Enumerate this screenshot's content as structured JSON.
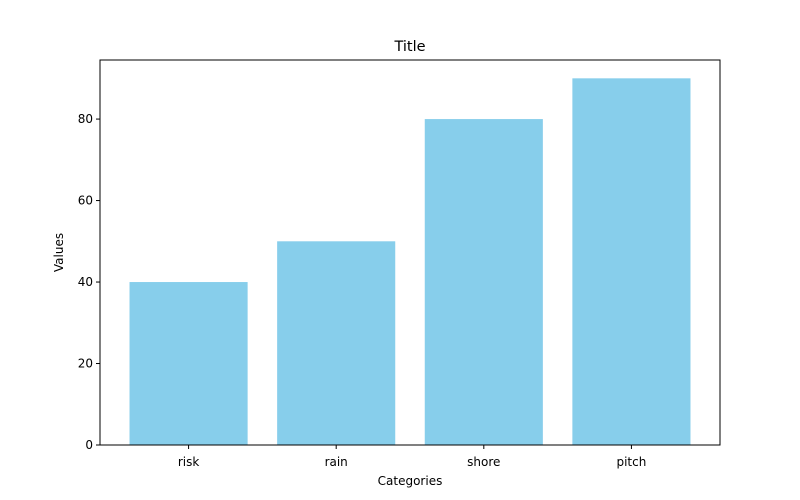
{
  "chart_data": {
    "type": "bar",
    "title": "Title",
    "xlabel": "Categories",
    "ylabel": "Values",
    "categories": [
      "risk",
      "rain",
      "shore",
      "pitch"
    ],
    "values": [
      40,
      50,
      80,
      90
    ],
    "ylim": [
      0,
      94.5
    ],
    "yticks": [
      0,
      20,
      40,
      60,
      80
    ],
    "bar_color": "#87ceeb",
    "grid": false,
    "legend": "none"
  }
}
